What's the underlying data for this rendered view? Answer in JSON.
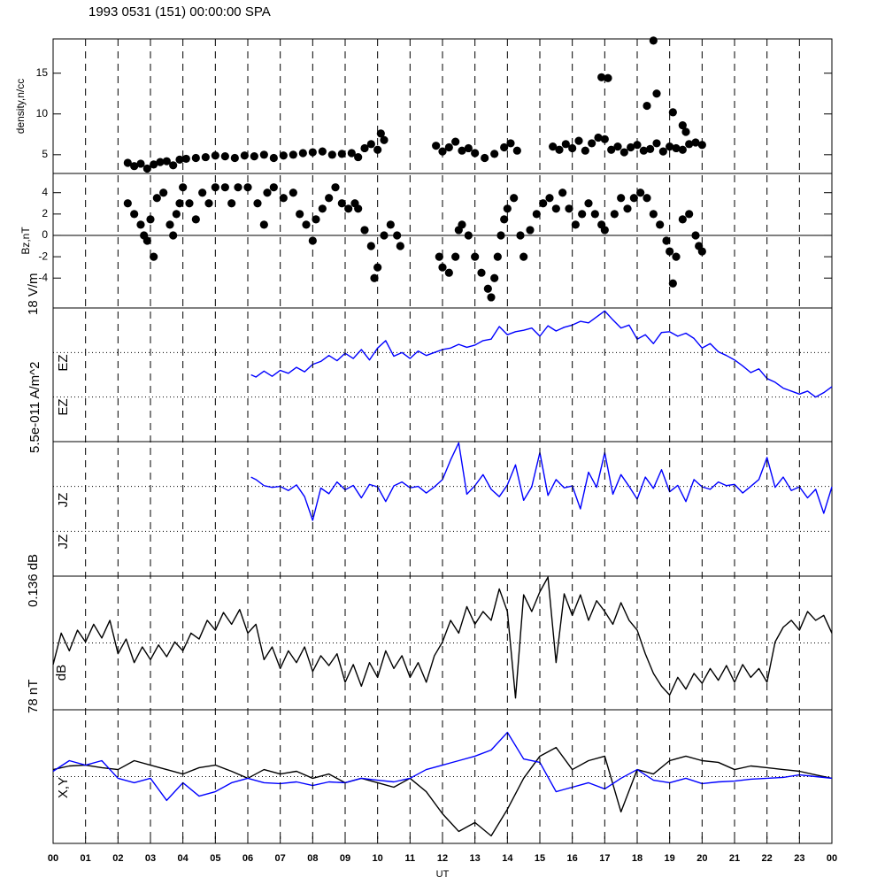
{
  "chart_data": [
    {
      "type": "scatter",
      "title": "1993 0531 (151) 00:00:00 SPA",
      "y_label": "density,n/cc",
      "xlim": [
        0,
        24
      ],
      "ylim": [
        2.7,
        19.2
      ],
      "yticks": [
        5,
        10,
        15
      ],
      "color": "#000000",
      "x": [
        2.3,
        2.5,
        2.7,
        2.9,
        3.1,
        3.3,
        3.5,
        3.7,
        3.9,
        4.1,
        4.4,
        4.7,
        5.0,
        5.3,
        5.6,
        5.9,
        6.2,
        6.5,
        6.8,
        7.1,
        7.4,
        7.7,
        8.0,
        8.3,
        8.6,
        8.9,
        9.2,
        9.4,
        9.6,
        9.8,
        10.0,
        10.1,
        10.2,
        11.8,
        12.0,
        12.2,
        12.4,
        12.6,
        12.8,
        13.0,
        13.3,
        13.6,
        13.9,
        14.1,
        14.3,
        15.4,
        15.6,
        15.8,
        16.0,
        16.2,
        16.4,
        16.6,
        16.8,
        17.0,
        17.2,
        17.4,
        17.6,
        17.8,
        18.0,
        18.2,
        18.4,
        18.6,
        18.8,
        19.0,
        19.2,
        19.4,
        19.6,
        19.8,
        20.0,
        16.9,
        17.1,
        18.3,
        18.6,
        18.5,
        19.1,
        19.4,
        19.5
      ],
      "values": [
        4.0,
        3.6,
        3.9,
        3.3,
        3.8,
        4.1,
        4.2,
        3.7,
        4.4,
        4.5,
        4.6,
        4.7,
        4.9,
        4.8,
        4.6,
        4.9,
        4.8,
        5.0,
        4.6,
        4.9,
        5.0,
        5.2,
        5.3,
        5.4,
        5.0,
        5.1,
        5.2,
        4.7,
        5.8,
        6.3,
        5.6,
        7.6,
        6.8,
        6.1,
        5.4,
        5.9,
        6.6,
        5.5,
        5.8,
        5.2,
        4.6,
        5.1,
        5.9,
        6.4,
        5.5,
        6.0,
        5.6,
        6.3,
        5.8,
        6.7,
        5.5,
        6.4,
        7.1,
        6.9,
        5.6,
        6.0,
        5.3,
        5.9,
        6.2,
        5.5,
        5.7,
        6.4,
        5.4,
        6.0,
        5.8,
        5.6,
        6.3,
        6.5,
        6.2,
        14.5,
        14.4,
        11.0,
        12.5,
        19.0,
        10.2,
        8.6,
        7.8
      ]
    },
    {
      "type": "scatter",
      "y_label": "Bz,nT",
      "xlim": [
        0,
        24
      ],
      "ylim": [
        -6.8,
        5.8
      ],
      "yticks": [
        4,
        2,
        0,
        -2,
        -4
      ],
      "hlines": [
        0
      ],
      "hline_style": "solid",
      "color": "#000000",
      "x": [
        2.3,
        2.5,
        2.7,
        2.8,
        2.9,
        3.0,
        3.1,
        3.2,
        3.4,
        3.6,
        3.7,
        3.8,
        3.9,
        4.0,
        4.2,
        4.4,
        4.6,
        4.8,
        5.0,
        5.3,
        5.5,
        5.7,
        6.0,
        6.3,
        6.5,
        6.6,
        6.8,
        7.1,
        7.4,
        7.6,
        7.8,
        8.0,
        8.1,
        8.3,
        8.5,
        8.7,
        8.9,
        9.1,
        9.3,
        9.4,
        9.6,
        9.8,
        9.9,
        10.0,
        10.2,
        10.4,
        10.6,
        10.7,
        11.9,
        12.0,
        12.2,
        12.4,
        12.5,
        12.6,
        12.8,
        13.0,
        13.2,
        13.4,
        13.5,
        13.6,
        13.7,
        13.8,
        13.9,
        14.0,
        14.2,
        14.4,
        14.5,
        14.7,
        14.9,
        15.1,
        15.3,
        15.5,
        15.7,
        15.9,
        16.1,
        16.3,
        16.5,
        16.7,
        16.9,
        17.0,
        17.3,
        17.5,
        17.7,
        17.9,
        18.1,
        18.3,
        18.5,
        18.7,
        18.9,
        19.0,
        19.1,
        19.2,
        19.4,
        19.6,
        19.8,
        19.9,
        20.0
      ],
      "values": [
        3,
        2,
        1,
        0,
        -0.5,
        1.5,
        -2,
        3.5,
        4,
        1,
        0,
        2,
        3,
        4.5,
        3,
        1.5,
        4,
        3,
        4.5,
        4.5,
        3,
        4.5,
        4.5,
        3,
        1,
        4,
        4.5,
        3.5,
        4,
        2,
        1,
        -0.5,
        1.5,
        2.5,
        3.5,
        4.5,
        3,
        2.5,
        3,
        2.5,
        0.5,
        -1,
        -4,
        -3,
        0,
        1,
        0,
        -1,
        -2,
        -3,
        -3.5,
        -2,
        0.5,
        1,
        0,
        -2,
        -3.5,
        -5,
        -5.8,
        -4,
        -2,
        0,
        1.5,
        2.5,
        3.5,
        0,
        -2,
        0.5,
        2,
        3,
        3.5,
        2.5,
        4,
        2.5,
        1,
        2,
        3,
        2,
        1,
        0.5,
        2,
        3.5,
        2.5,
        3.5,
        4,
        3.5,
        2,
        1,
        -0.5,
        -1.5,
        -4.5,
        -2,
        1.5,
        2,
        0,
        -1,
        -1.5
      ]
    },
    {
      "type": "line",
      "scale_label": "18 V/m",
      "y_labels": [
        "EZ",
        "EZ"
      ],
      "xlim": [
        0,
        24
      ],
      "ylim": [
        -9,
        9
      ],
      "hlines": [
        3,
        -3
      ],
      "hline_style": "dotted",
      "color": "#0000ff",
      "x": [
        6.1,
        6.25,
        6.5,
        6.75,
        7,
        7.25,
        7.5,
        7.75,
        8,
        8.25,
        8.5,
        8.75,
        9,
        9.25,
        9.5,
        9.75,
        10,
        10.25,
        10.5,
        10.75,
        11,
        11.25,
        11.5,
        11.75,
        12,
        12.25,
        12.5,
        12.75,
        13,
        13.25,
        13.5,
        13.75,
        14,
        14.25,
        14.5,
        14.75,
        15,
        15.25,
        15.5,
        15.75,
        16,
        16.25,
        16.5,
        16.75,
        17,
        17.25,
        17.5,
        17.75,
        18,
        18.25,
        18.5,
        18.75,
        19,
        19.25,
        19.5,
        19.75,
        20,
        20.25,
        20.5,
        20.75,
        21,
        21.25,
        21.5,
        21.75,
        22,
        22.25,
        22.5,
        22.75,
        23,
        23.25,
        23.5,
        23.75,
        24
      ],
      "values": [
        0,
        -0.3,
        0.5,
        -0.2,
        0.6,
        0.2,
        1.0,
        0.4,
        1.4,
        1.8,
        2.6,
        1.9,
        2.9,
        2.2,
        3.4,
        2.0,
        3.6,
        4.6,
        2.5,
        3.0,
        2.2,
        3.2,
        2.6,
        3.0,
        3.4,
        3.6,
        4.1,
        3.7,
        4.0,
        4.6,
        4.8,
        6.5,
        5.4,
        5.8,
        6.0,
        6.3,
        5.2,
        6.6,
        5.9,
        6.4,
        6.7,
        7.2,
        7.0,
        7.8,
        8.6,
        7.4,
        6.3,
        6.7,
        4.8,
        5.4,
        4.2,
        5.7,
        5.8,
        5.2,
        5.6,
        4.9,
        3.6,
        4.2,
        3.1,
        2.6,
        2.0,
        1.2,
        0.3,
        0.8,
        -0.5,
        -1.0,
        -1.8,
        -2.2,
        -2.6,
        -2.2,
        -3.0,
        -2.4,
        -1.6
      ]
    },
    {
      "type": "line",
      "scale_label": "5.5e-011 A/m^2",
      "y_labels": [
        "JZ",
        "JZ"
      ],
      "xlim": [
        0,
        24
      ],
      "ylim": [
        -2.75e-11,
        2.75e-11
      ],
      "hlines": [
        9.2e-12,
        -9.2e-12
      ],
      "hline_style": "dotted",
      "color": "#0000ff",
      "x": [
        6.1,
        6.25,
        6.5,
        6.75,
        7,
        7.25,
        7.5,
        7.75,
        8,
        8.25,
        8.5,
        8.75,
        9,
        9.25,
        9.5,
        9.75,
        10,
        10.25,
        10.5,
        10.75,
        11,
        11.25,
        11.5,
        11.75,
        12,
        12.25,
        12.5,
        12.75,
        13,
        13.25,
        13.5,
        13.75,
        14,
        14.25,
        14.5,
        14.75,
        15,
        15.25,
        15.5,
        15.75,
        16,
        16.25,
        16.5,
        16.75,
        17,
        17.25,
        17.5,
        17.75,
        18,
        18.25,
        18.5,
        18.75,
        19,
        19.25,
        19.5,
        19.75,
        20,
        20.25,
        20.5,
        20.75,
        21,
        21.25,
        21.5,
        21.75,
        22,
        22.25,
        22.5,
        22.75,
        23,
        23.25,
        23.5,
        23.75,
        24
      ],
      "values": [
        1.3e-11,
        1.2e-11,
        9.5e-12,
        8.8e-12,
        9.2e-12,
        7.5e-12,
        9.8e-12,
        5e-12,
        -4.7e-12,
        8.5e-12,
        6.2e-12,
        1.1e-11,
        7.8e-12,
        9.6e-12,
        4.5e-12,
        1e-11,
        9e-12,
        3e-12,
        9.4e-12,
        1.1e-11,
        8.6e-12,
        9.2e-12,
        6.5e-12,
        9e-12,
        1.2e-11,
        2e-11,
        2.7e-11,
        6e-12,
        9.5e-12,
        1.4e-11,
        8e-12,
        5e-12,
        9.8e-12,
        1.8e-11,
        3.5e-12,
        9e-12,
        2.3e-11,
        5.5e-12,
        1.2e-11,
        8.6e-12,
        9.4e-12,
        0,
        1.5e-11,
        8.8e-12,
        2.3e-11,
        6e-12,
        1.4e-11,
        9.2e-12,
        4e-12,
        1.3e-11,
        8.4e-12,
        1.6e-11,
        7e-12,
        9.6e-12,
        3e-12,
        1.2e-11,
        9e-12,
        8e-12,
        1.1e-11,
        9.5e-12,
        1e-11,
        6.5e-12,
        9.2e-12,
        1.2e-11,
        2.1e-11,
        8.8e-12,
        1.3e-11,
        7.5e-12,
        9e-12,
        4.5e-12,
        8e-12,
        -1.8e-12,
        9e-12
      ]
    },
    {
      "type": "line",
      "scale_label": "0.136 dB",
      "y_labels": [
        "dB"
      ],
      "xlim": [
        0,
        24
      ],
      "ylim": [
        -0.068,
        0.068
      ],
      "hlines": [
        0
      ],
      "hline_style": "dotted",
      "color": "#000000",
      "x": [
        0,
        0.25,
        0.5,
        0.75,
        1,
        1.25,
        1.5,
        1.75,
        2,
        2.25,
        2.5,
        2.75,
        3,
        3.25,
        3.5,
        3.75,
        4,
        4.25,
        4.5,
        4.75,
        5,
        5.25,
        5.5,
        5.75,
        6,
        6.25,
        6.5,
        6.75,
        7,
        7.25,
        7.5,
        7.75,
        8,
        8.25,
        8.5,
        8.75,
        9,
        9.25,
        9.5,
        9.75,
        10,
        10.25,
        10.5,
        10.75,
        11,
        11.25,
        11.5,
        11.75,
        12,
        12.25,
        12.5,
        12.75,
        13,
        13.25,
        13.5,
        13.75,
        14,
        14.25,
        14.5,
        14.75,
        15,
        15.25,
        15.5,
        15.75,
        16,
        16.25,
        16.5,
        16.75,
        17,
        17.25,
        17.5,
        17.75,
        18,
        18.25,
        18.5,
        18.75,
        19,
        19.25,
        19.5,
        19.75,
        20,
        20.25,
        20.5,
        20.75,
        21,
        21.25,
        21.5,
        21.75,
        22,
        22.25,
        22.5,
        22.75,
        23,
        23.25,
        23.5,
        23.75,
        24
      ],
      "values": [
        -0.022,
        0.01,
        -0.008,
        0.013,
        0.001,
        0.019,
        0.005,
        0.023,
        -0.011,
        0.004,
        -0.02,
        -0.004,
        -0.017,
        -0.002,
        -0.014,
        0.001,
        -0.008,
        0.01,
        0.004,
        0.023,
        0.013,
        0.031,
        0.019,
        0.034,
        0.01,
        0.019,
        -0.017,
        -0.004,
        -0.026,
        -0.008,
        -0.02,
        -0.004,
        -0.029,
        -0.013,
        -0.023,
        -0.011,
        -0.04,
        -0.022,
        -0.044,
        -0.02,
        -0.035,
        -0.008,
        -0.026,
        -0.013,
        -0.035,
        -0.02,
        -0.04,
        -0.013,
        0.001,
        0.023,
        0.01,
        0.037,
        0.019,
        0.032,
        0.023,
        0.055,
        0.032,
        -0.056,
        0.049,
        0.032,
        0.052,
        0.067,
        -0.02,
        0.05,
        0.028,
        0.049,
        0.023,
        0.043,
        0.032,
        0.019,
        0.041,
        0.023,
        0.013,
        -0.011,
        -0.031,
        -0.044,
        -0.053,
        -0.035,
        -0.047,
        -0.031,
        -0.041,
        -0.026,
        -0.038,
        -0.023,
        -0.04,
        -0.022,
        -0.035,
        -0.026,
        -0.04,
        0.001,
        0.016,
        0.023,
        0.013,
        0.032,
        0.023,
        0.028,
        0.01
      ]
    },
    {
      "type": "line",
      "scale_label": "78 nT",
      "y_labels": [
        "X,Y"
      ],
      "xlim": [
        0,
        24
      ],
      "ylim": [
        -39,
        39
      ],
      "hlines": [
        0
      ],
      "hline_style": "dotted",
      "x_label": "UT",
      "xticks": [
        {
          "value": 0,
          "label": "00"
        },
        {
          "value": 1,
          "label": "01"
        },
        {
          "value": 2,
          "label": "02"
        },
        {
          "value": 3,
          "label": "03"
        },
        {
          "value": 4,
          "label": "04"
        },
        {
          "value": 5,
          "label": "05"
        },
        {
          "value": 6,
          "label": "06"
        },
        {
          "value": 7,
          "label": "07"
        },
        {
          "value": 8,
          "label": "08"
        },
        {
          "value": 9,
          "label": "09"
        },
        10,
        11,
        12,
        13,
        14,
        15,
        16,
        17,
        18,
        19,
        20,
        21,
        22,
        23,
        {
          "value": 24,
          "label": "00"
        }
      ],
      "series": [
        {
          "color": "#000000",
          "x": [
            0,
            0.5,
            1,
            1.5,
            2,
            2.5,
            3,
            3.5,
            4,
            4.5,
            5,
            5.5,
            6,
            6.5,
            7,
            7.5,
            8,
            8.5,
            9,
            9.5,
            10,
            10.5,
            11,
            11.5,
            12,
            12.5,
            13,
            13.5,
            14,
            14.5,
            15,
            15.5,
            16,
            16.5,
            17,
            17.5,
            18,
            18.5,
            19,
            19.5,
            20,
            20.5,
            21,
            21.5,
            22,
            22.5,
            23,
            23.5,
            24
          ],
          "values": [
            4.1,
            6.2,
            6.7,
            5.2,
            4.1,
            9.3,
            6.7,
            4.1,
            1.5,
            5.2,
            6.7,
            3.1,
            -1.0,
            4.1,
            1.5,
            3.1,
            -1.0,
            1.5,
            -3.6,
            -1.0,
            -3.6,
            -6.2,
            -1.0,
            -8.8,
            -21.7,
            -32.0,
            -26.8,
            -34.6,
            -19.1,
            -1.0,
            11.9,
            17.0,
            4.1,
            9.3,
            11.9,
            -20.6,
            4.1,
            1.5,
            9.3,
            11.9,
            9.3,
            8.3,
            4.1,
            6.2,
            5.2,
            4.1,
            3.1,
            1.0,
            -1.0
          ]
        },
        {
          "color": "#0000ff",
          "x": [
            0,
            0.5,
            1,
            1.5,
            2,
            2.5,
            3,
            3.5,
            4,
            4.5,
            5,
            5.5,
            6,
            6.5,
            7,
            7.5,
            8,
            8.5,
            9,
            9.5,
            10,
            10.5,
            11,
            11.5,
            12,
            12.5,
            13,
            13.5,
            14,
            14.5,
            15,
            15.5,
            16,
            16.5,
            17,
            17.5,
            18,
            18.5,
            19,
            19.5,
            20,
            20.5,
            21,
            21.5,
            22,
            22.5,
            23,
            23.5,
            24
          ],
          "values": [
            3.1,
            9.3,
            6.7,
            9.3,
            -1.0,
            -3.6,
            -1.0,
            -13.9,
            -3.6,
            -11.4,
            -8.8,
            -3.6,
            -1.0,
            -3.6,
            -4.1,
            -3.1,
            -5.2,
            -3.1,
            -3.6,
            -1.0,
            -2.1,
            -3.1,
            -1.0,
            4.1,
            6.7,
            9.3,
            11.9,
            15.5,
            25.8,
            10.3,
            8.3,
            -8.8,
            -6.2,
            -3.6,
            -7.2,
            -1.0,
            4.1,
            -2.1,
            -3.6,
            -1.0,
            -4.1,
            -3.1,
            -2.6,
            -1.5,
            -1.0,
            -0.5,
            1.0,
            0,
            -1.0
          ]
        }
      ]
    }
  ]
}
